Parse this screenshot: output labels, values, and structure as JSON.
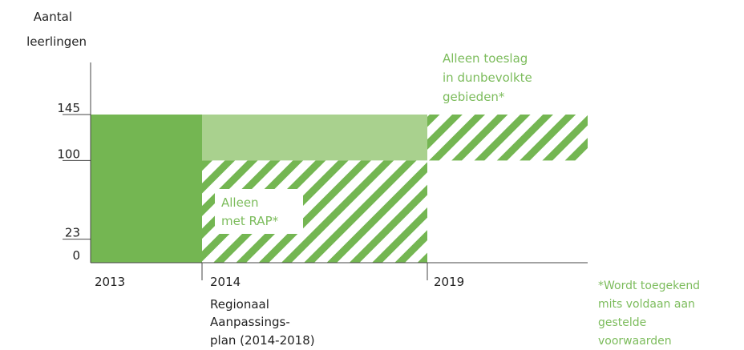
{
  "chart_data": {
    "type": "area",
    "y_title_lines": [
      "Aantal",
      "leerlingen"
    ],
    "y_ticks": [
      0,
      23,
      100,
      145
    ],
    "ylim": [
      0,
      145
    ],
    "x_points": [
      {
        "label": "2013"
      },
      {
        "label": "2014",
        "sub_lines": [
          "Regionaal",
          "Aanpassings-",
          "plan (2014-2018)"
        ]
      },
      {
        "label": "2019"
      }
    ],
    "periods": [
      {
        "from": "2013",
        "to": "2014",
        "min": 0,
        "max": 145,
        "style": "solid-dark"
      },
      {
        "from": "2014",
        "to": "2019",
        "min": 100,
        "max": 145,
        "style": "solid-light"
      },
      {
        "from": "2014",
        "to": "2019",
        "min": 0,
        "max": 100,
        "style": "hatched"
      },
      {
        "from": "2019",
        "to": "end",
        "min": 100,
        "max": 145,
        "style": "hatched"
      }
    ],
    "annotations": [
      {
        "lines": [
          "Alleen",
          "met RAP*"
        ]
      },
      {
        "lines": [
          "Alleen toeslag",
          "in dunbevolkte",
          "gebieden*"
        ]
      }
    ],
    "footnote_lines": [
      "*Wordt toegekend",
      "mits voldaan aan",
      "gestelde",
      "voorwaarden"
    ],
    "colors": {
      "dark": "#74b652",
      "light": "#a9d18e",
      "hatch": "#74b652",
      "text": "#7cbc5c",
      "axis": "#444444"
    }
  }
}
